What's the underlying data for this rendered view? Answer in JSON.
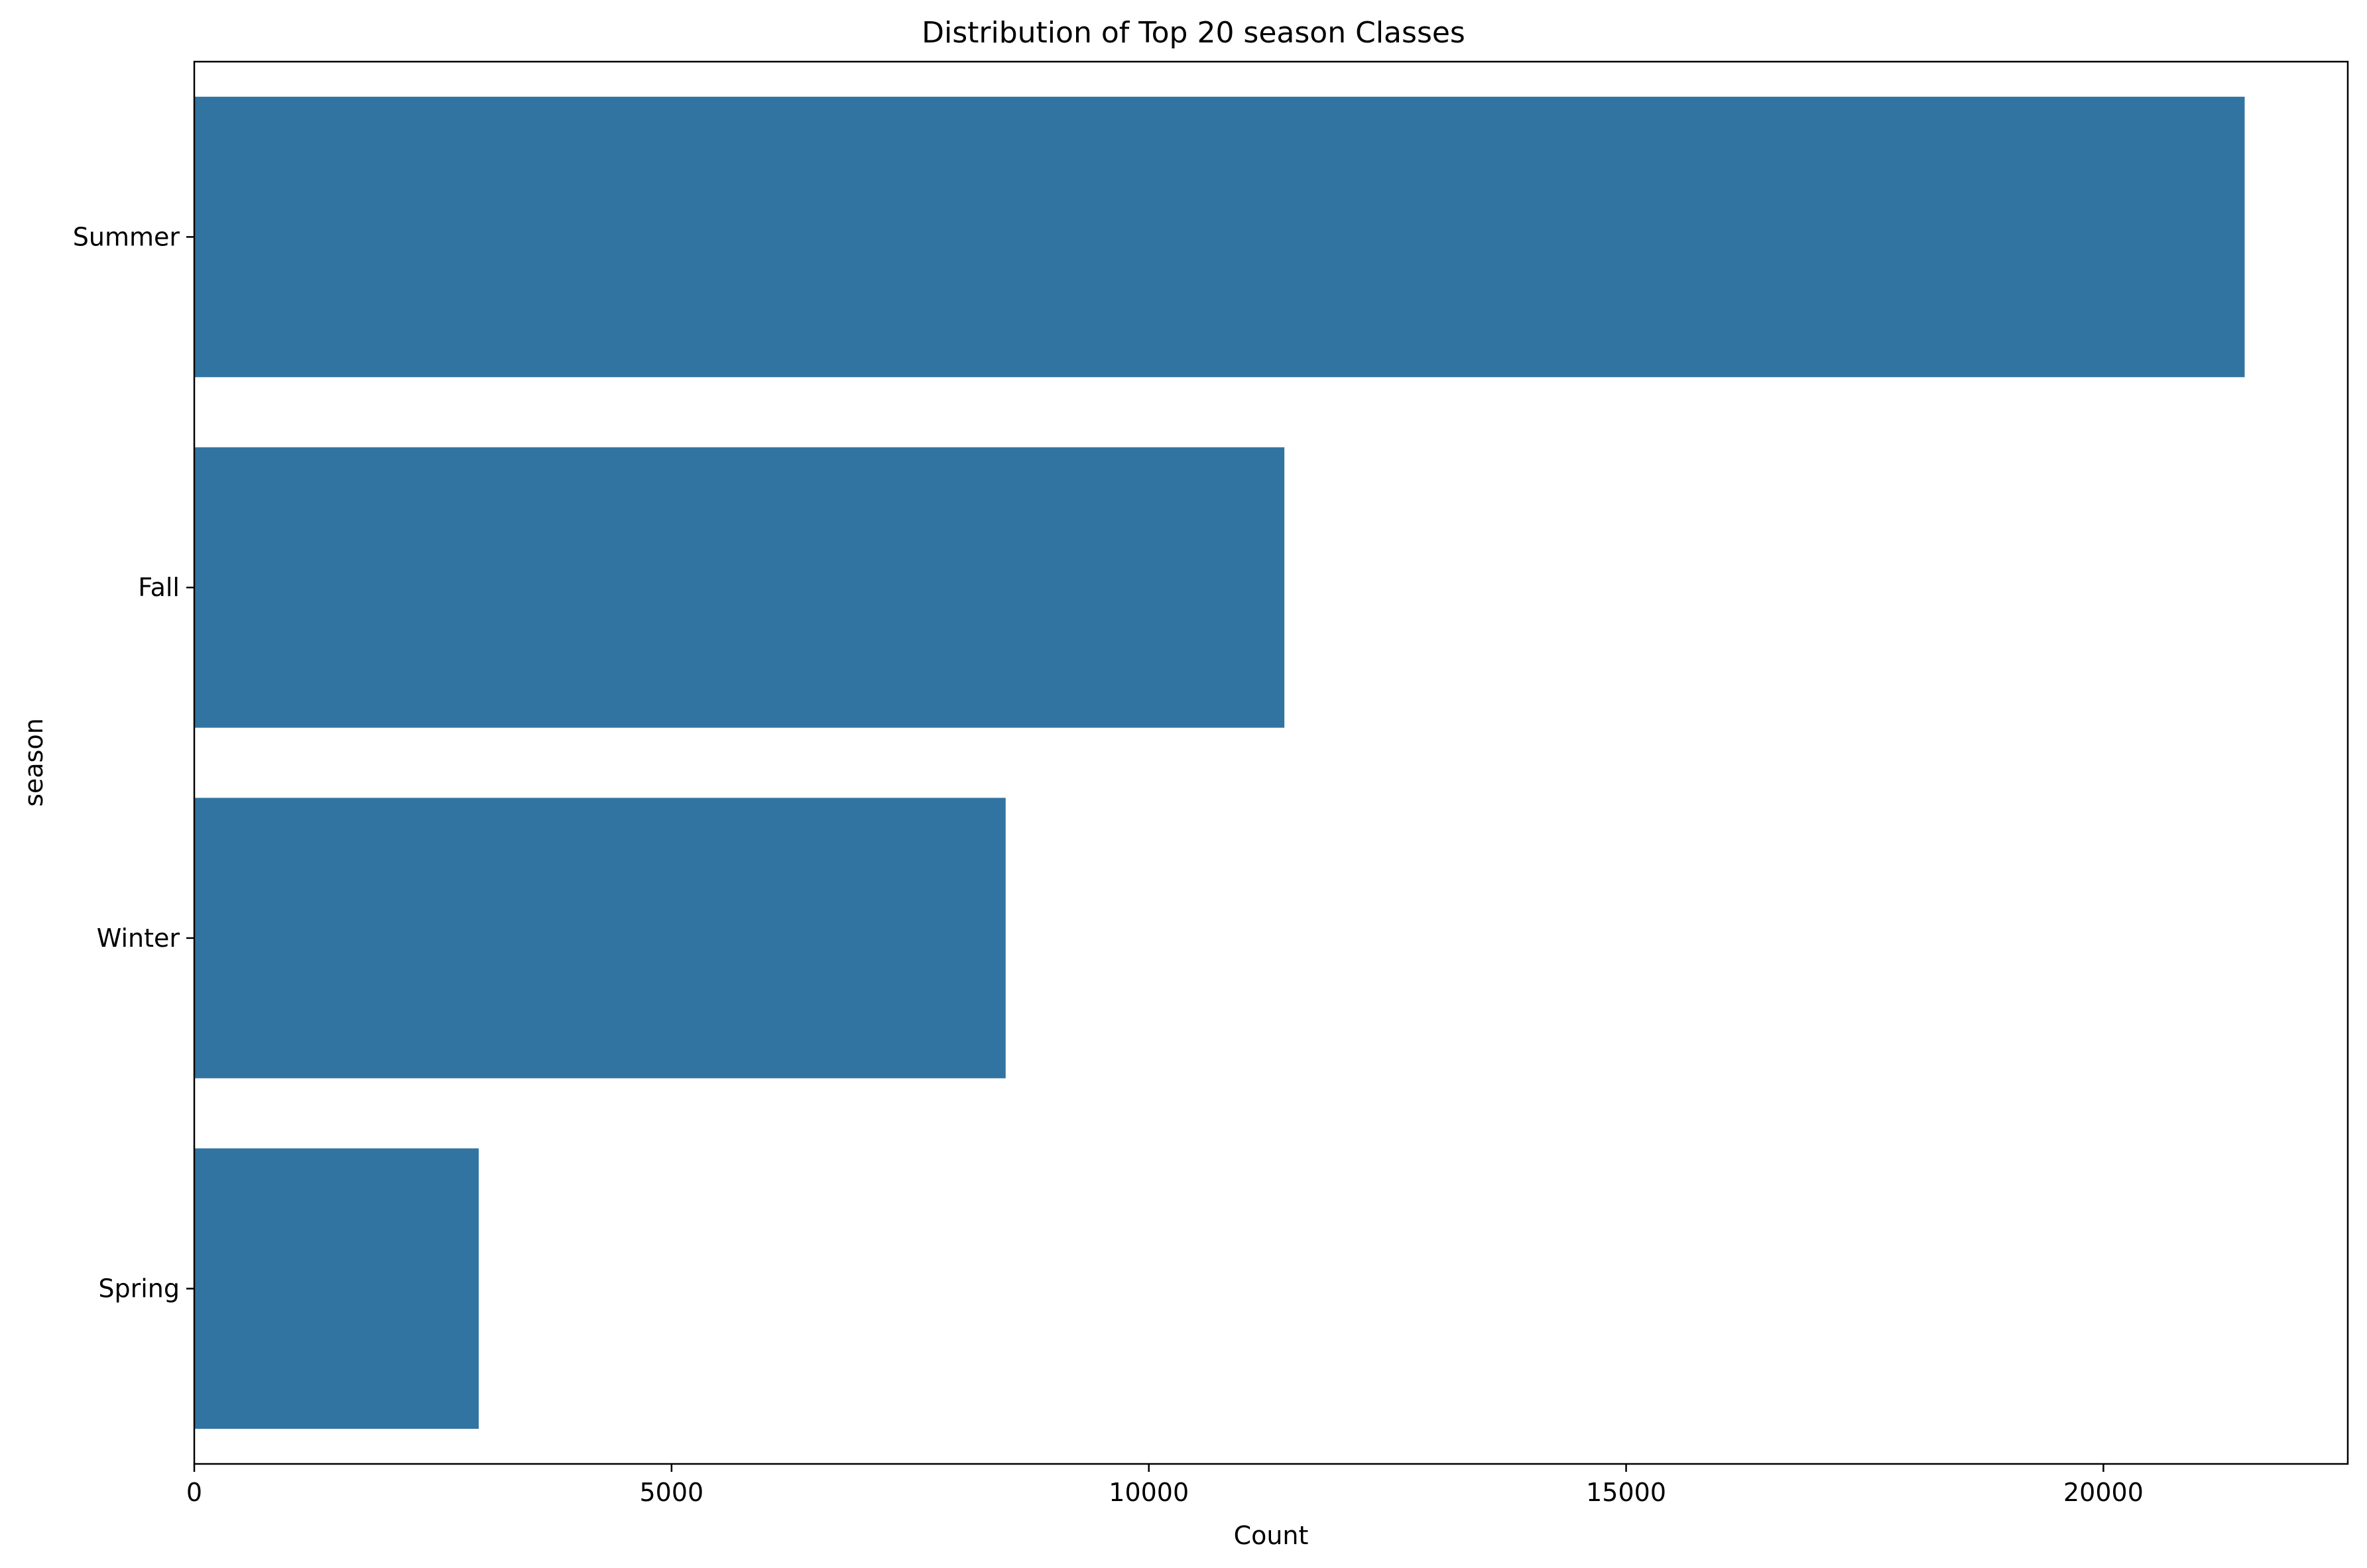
{
  "chart_data": {
    "type": "bar",
    "orientation": "horizontal",
    "title": "Distribution of Top 20 season Classes",
    "xlabel": "Count",
    "ylabel": "season",
    "categories": [
      "Summer",
      "Fall",
      "Winter",
      "Spring"
    ],
    "values": [
      21480,
      11420,
      8500,
      2980
    ],
    "xlim": [
      0,
      22560
    ],
    "xticks": [
      0,
      5000,
      10000,
      15000,
      20000
    ],
    "grid": false,
    "bar_color": "#3274a1"
  }
}
